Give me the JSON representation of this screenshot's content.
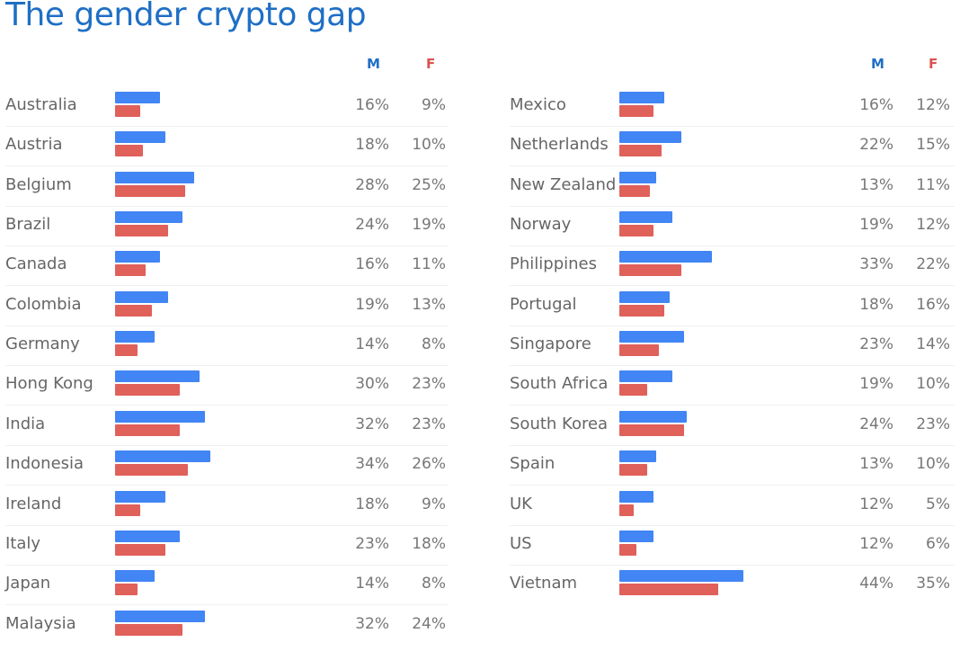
{
  "chart_data": {
    "type": "bar",
    "title": "The gender crypto gap",
    "legend": [
      {
        "name": "M",
        "color": "#1f6fc5"
      },
      {
        "name": "F",
        "color": "#d9534f"
      }
    ],
    "colors": {
      "M": "#4285f4",
      "F": "#e0605a"
    },
    "left": [
      {
        "country": "Australia",
        "M": 16,
        "F": 9,
        "M_label": "16%",
        "F_label": "9%"
      },
      {
        "country": "Austria",
        "M": 18,
        "F": 10,
        "M_label": "18%",
        "F_label": "10%"
      },
      {
        "country": "Belgium",
        "M": 28,
        "F": 25,
        "M_label": "28%",
        "F_label": "25%"
      },
      {
        "country": "Brazil",
        "M": 24,
        "F": 19,
        "M_label": "24%",
        "F_label": "19%"
      },
      {
        "country": "Canada",
        "M": 16,
        "F": 11,
        "M_label": "16%",
        "F_label": "11%"
      },
      {
        "country": "Colombia",
        "M": 19,
        "F": 13,
        "M_label": "19%",
        "F_label": "13%"
      },
      {
        "country": "Germany",
        "M": 14,
        "F": 8,
        "M_label": "14%",
        "F_label": "8%"
      },
      {
        "country": "Hong Kong",
        "M": 30,
        "F": 23,
        "M_label": "30%",
        "F_label": "23%"
      },
      {
        "country": "India",
        "M": 32,
        "F": 23,
        "M_label": "32%",
        "F_label": "23%"
      },
      {
        "country": "Indonesia",
        "M": 34,
        "F": 26,
        "M_label": "34%",
        "F_label": "26%"
      },
      {
        "country": "Ireland",
        "M": 18,
        "F": 9,
        "M_label": "18%",
        "F_label": "9%"
      },
      {
        "country": "Italy",
        "M": 23,
        "F": 18,
        "M_label": "23%",
        "F_label": "18%"
      },
      {
        "country": "Japan",
        "M": 14,
        "F": 8,
        "M_label": "14%",
        "F_label": "8%"
      },
      {
        "country": "Malaysia",
        "M": 32,
        "F": 24,
        "M_label": "32%",
        "F_label": "24%"
      }
    ],
    "right": [
      {
        "country": "Mexico",
        "M": 16,
        "F": 12,
        "M_label": "16%",
        "F_label": "12%"
      },
      {
        "country": "Netherlands",
        "M": 22,
        "F": 15,
        "M_label": "22%",
        "F_label": "15%"
      },
      {
        "country": "New Zealand",
        "M": 13,
        "F": 11,
        "M_label": "13%",
        "F_label": "11%"
      },
      {
        "country": "Norway",
        "M": 19,
        "F": 12,
        "M_label": "19%",
        "F_label": "12%"
      },
      {
        "country": "Philippines",
        "M": 33,
        "F": 22,
        "M_label": "33%",
        "F_label": "22%"
      },
      {
        "country": "Portugal",
        "M": 18,
        "F": 16,
        "M_label": "18%",
        "F_label": "16%"
      },
      {
        "country": "Singapore",
        "M": 23,
        "F": 14,
        "M_label": "23%",
        "F_label": "14%"
      },
      {
        "country": "South Africa",
        "M": 19,
        "F": 10,
        "M_label": "19%",
        "F_label": "10%"
      },
      {
        "country": "South Korea",
        "M": 24,
        "F": 23,
        "M_label": "24%",
        "F_label": "23%"
      },
      {
        "country": "Spain",
        "M": 13,
        "F": 10,
        "M_label": "13%",
        "F_label": "10%"
      },
      {
        "country": "UK",
        "M": 12,
        "F": 5,
        "M_label": "12%",
        "F_label": "5%"
      },
      {
        "country": "US",
        "M": 12,
        "F": 6,
        "M_label": "12%",
        "F_label": "6%"
      },
      {
        "country": "Vietnam",
        "M": 44,
        "F": 35,
        "M_label": "44%",
        "F_label": "35%"
      }
    ]
  }
}
